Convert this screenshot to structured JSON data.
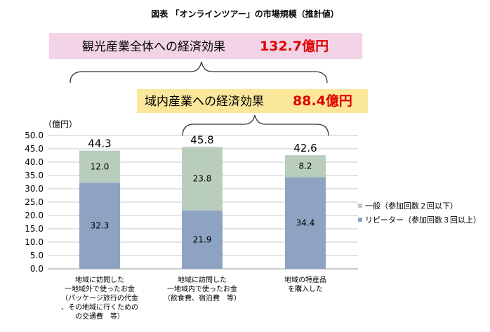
{
  "figure": {
    "title": "図表 「オンラインツアー」の市場規模（推計値）",
    "total_box": {
      "label": "観光産業全体への経済効果",
      "value": "132.7億円"
    },
    "regional_box": {
      "label": "域内産業への経済効果",
      "value": "88.4億円"
    }
  },
  "colors": {
    "repeater": "#8ea3c2",
    "general": "#b9cdbd",
    "total_box_bg": "#f2d4e6",
    "regional_box_bg": "#fbe79a",
    "value_red": "#e00000",
    "grid": "#c8c8c8"
  },
  "chart_data": {
    "type": "bar",
    "stacked": true,
    "unit_label": "（億円）",
    "categories": [
      [
        "地域に訪問した",
        "一地域外で使ったお金",
        "（パッケージ旅行の代金",
        "、その地域に行くための",
        "の交通費　等）"
      ],
      [
        "地域に訪問した",
        "一地域内で使ったお金",
        "（飲食費、宿泊費　等）"
      ],
      [
        "地域の特産品",
        "を購入した"
      ]
    ],
    "series": [
      {
        "name": "リピーター（参加回数３回以上）",
        "values": [
          32.3,
          21.9,
          34.4
        ],
        "value_labels": [
          "32.3",
          "21.9",
          "34.4"
        ]
      },
      {
        "name": "一般（参加回数２回以下）",
        "values": [
          12.0,
          23.8,
          8.2
        ],
        "value_labels": [
          "12.0",
          "23.8",
          "8.2"
        ]
      }
    ],
    "totals": [
      "44.3",
      "45.8",
      "42.6"
    ],
    "ylim": [
      0,
      50
    ],
    "yticks": [
      "0.0",
      "5.0",
      "10.0",
      "15.0",
      "20.0",
      "25.0",
      "30.0",
      "35.0",
      "40.0",
      "45.0",
      "50.0"
    ],
    "grid": true,
    "legend_position": "right"
  }
}
